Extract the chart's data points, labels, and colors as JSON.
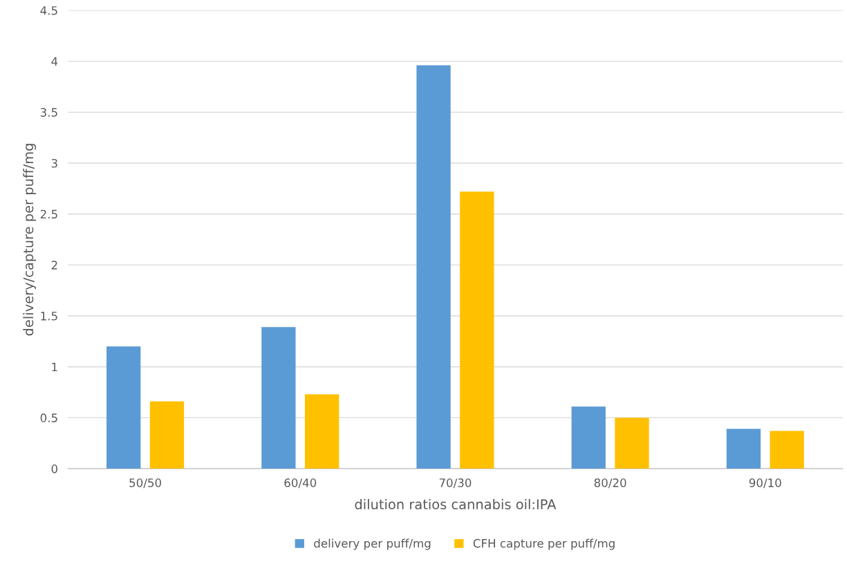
{
  "chart_data": {
    "type": "bar",
    "xlabel": "dilution ratios cannabis oil:IPA",
    "ylabel": "delivery/capture per puff/mg",
    "categories": [
      "50/50",
      "60/40",
      "70/30",
      "80/20",
      "90/10"
    ],
    "series": [
      {
        "name": "delivery per puff/mg",
        "color": "#5b9bd5",
        "values": [
          1.2,
          1.39,
          3.96,
          0.61,
          0.39
        ]
      },
      {
        "name": "CFH capture per puff/mg",
        "color": "#ffc000",
        "values": [
          0.66,
          0.73,
          2.72,
          0.5,
          0.37
        ]
      }
    ],
    "ylim": [
      0,
      4.5
    ],
    "yticks": [
      0,
      0.5,
      1,
      1.5,
      2,
      2.5,
      3,
      3.5,
      4,
      4.5
    ],
    "grid": "y",
    "legend": "bottom"
  }
}
